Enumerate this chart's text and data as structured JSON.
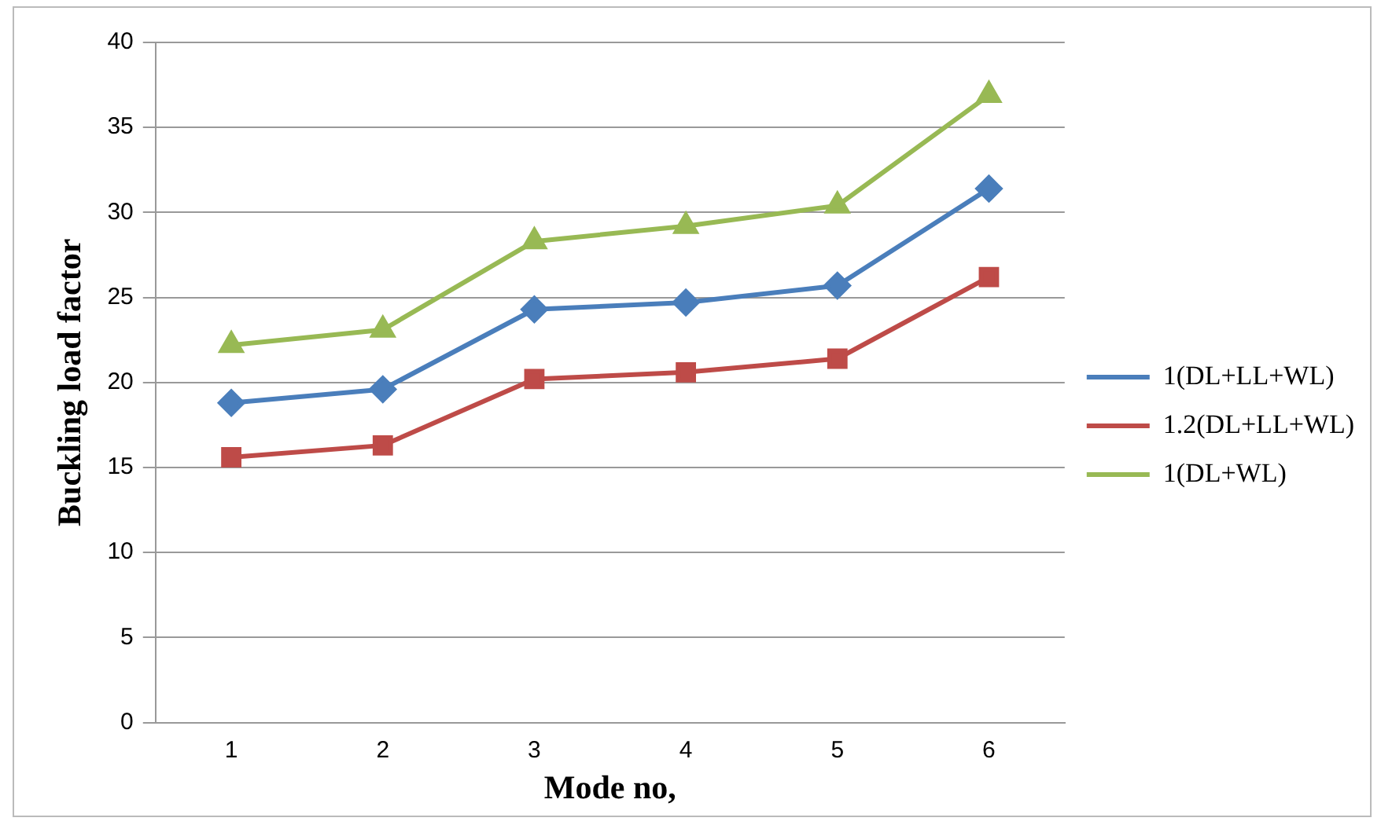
{
  "chart_data": {
    "type": "line",
    "xlabel": "Mode no,",
    "ylabel": "Buckling load factor",
    "categories": [
      "1",
      "2",
      "3",
      "4",
      "5",
      "6"
    ],
    "series": [
      {
        "name": "1(DL+LL+WL)",
        "color": "#4a7ebb",
        "marker": "diamond",
        "values": [
          18.8,
          19.6,
          24.3,
          24.7,
          25.7,
          31.4
        ]
      },
      {
        "name": "1.2(DL+LL+WL)",
        "color": "#be4b48",
        "marker": "square",
        "values": [
          15.6,
          16.3,
          20.2,
          20.6,
          21.4,
          26.2
        ]
      },
      {
        "name": "1(DL+WL)",
        "color": "#98b954",
        "marker": "triangle",
        "values": [
          22.2,
          23.1,
          28.3,
          29.2,
          30.4,
          36.9
        ]
      }
    ],
    "ylim": [
      0,
      40
    ],
    "yticks": [
      0,
      5,
      10,
      15,
      20,
      25,
      30,
      35,
      40
    ],
    "grid": "y",
    "legend": "right"
  }
}
